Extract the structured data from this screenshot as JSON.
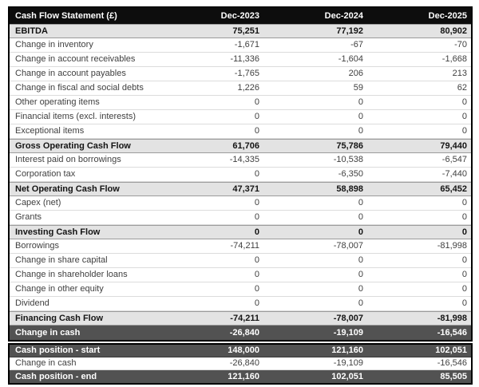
{
  "chart_data": {
    "type": "table",
    "title": "Cash Flow Statement (£)",
    "columns": [
      "Dec-2023",
      "Dec-2024",
      "Dec-2025"
    ],
    "rows": [
      {
        "label": "EBITDA",
        "values": [
          "75,251",
          "77,192",
          "80,902"
        ],
        "style": "subtotal"
      },
      {
        "label": "Change in inventory",
        "values": [
          "-1,671",
          "-67",
          "-70"
        ],
        "style": "normal"
      },
      {
        "label": "Change in account receivables",
        "values": [
          "-11,336",
          "-1,604",
          "-1,668"
        ],
        "style": "normal"
      },
      {
        "label": "Change in account payables",
        "values": [
          "-1,765",
          "206",
          "213"
        ],
        "style": "normal"
      },
      {
        "label": "Change in fiscal and social debts",
        "values": [
          "1,226",
          "59",
          "62"
        ],
        "style": "normal"
      },
      {
        "label": "Other operating items",
        "values": [
          "0",
          "0",
          "0"
        ],
        "style": "normal"
      },
      {
        "label": "Financial items (excl. interests)",
        "values": [
          "0",
          "0",
          "0"
        ],
        "style": "normal"
      },
      {
        "label": "Exceptional items",
        "values": [
          "0",
          "0",
          "0"
        ],
        "style": "normal"
      },
      {
        "label": "Gross Operating Cash Flow",
        "values": [
          "61,706",
          "75,786",
          "79,440"
        ],
        "style": "subtotal"
      },
      {
        "label": "Interest paid on borrowings",
        "values": [
          "-14,335",
          "-10,538",
          "-6,547"
        ],
        "style": "normal"
      },
      {
        "label": "Corporation tax",
        "values": [
          "0",
          "-6,350",
          "-7,440"
        ],
        "style": "normal"
      },
      {
        "label": "Net Operating Cash Flow",
        "values": [
          "47,371",
          "58,898",
          "65,452"
        ],
        "style": "subtotal"
      },
      {
        "label": "Capex (net)",
        "values": [
          "0",
          "0",
          "0"
        ],
        "style": "normal"
      },
      {
        "label": "Grants",
        "values": [
          "0",
          "0",
          "0"
        ],
        "style": "normal"
      },
      {
        "label": "Investing Cash Flow",
        "values": [
          "0",
          "0",
          "0"
        ],
        "style": "subtotal"
      },
      {
        "label": "Borrowings",
        "values": [
          "-74,211",
          "-78,007",
          "-81,998"
        ],
        "style": "normal"
      },
      {
        "label": "Change in share capital",
        "values": [
          "0",
          "0",
          "0"
        ],
        "style": "normal"
      },
      {
        "label": "Change in shareholder loans",
        "values": [
          "0",
          "0",
          "0"
        ],
        "style": "normal"
      },
      {
        "label": "Change in other equity",
        "values": [
          "0",
          "0",
          "0"
        ],
        "style": "normal"
      },
      {
        "label": "Dividend",
        "values": [
          "0",
          "0",
          "0"
        ],
        "style": "normal"
      },
      {
        "label": "Financing Cash Flow",
        "values": [
          "-74,211",
          "-78,007",
          "-81,998"
        ],
        "style": "subtotal"
      },
      {
        "label": "Change in cash",
        "values": [
          "-26,840",
          "-19,109",
          "-16,546"
        ],
        "style": "dark"
      }
    ],
    "cash_position_rows": [
      {
        "label": "Cash position - start",
        "values": [
          "148,000",
          "121,160",
          "102,051"
        ],
        "style": "dark"
      },
      {
        "label": "Change in cash",
        "values": [
          "-26,840",
          "-19,109",
          "-16,546"
        ],
        "style": "normal"
      },
      {
        "label": "Cash position - end",
        "values": [
          "121,160",
          "102,051",
          "85,505"
        ],
        "style": "dark"
      }
    ],
    "layout_hints": {
      "value_alignment": "right",
      "grid": "horizontal row lines only"
    }
  },
  "colors": {
    "header_bg": "#0d0d0d",
    "header_text": "#ffffff",
    "subtotal_bg": "#e3e3e3",
    "dark_row_bg": "#525252",
    "dark_row_text": "#ffffff",
    "normal_text": "#3f3f3f",
    "outer_border": "#000000",
    "row_line": "#dcdcdc"
  }
}
